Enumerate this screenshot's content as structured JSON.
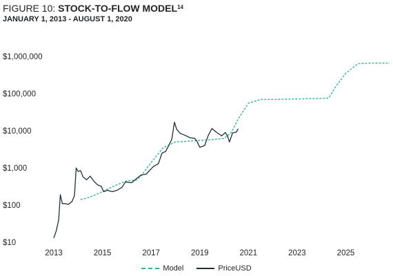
{
  "header": {
    "figure_label": "FIGURE 10:",
    "title": "STOCK-TO-FLOW MODEL",
    "footnote": "14",
    "subtitle": "JANUARY 1, 2013 - AUGUST 1, 2020"
  },
  "chart_data": {
    "type": "line",
    "title": "STOCK-TO-FLOW MODEL",
    "subtitle": "JANUARY 1, 2013 - AUGUST 1, 2020",
    "yscale": "log",
    "ylim": [
      10,
      1000000
    ],
    "xlim": [
      2013,
      2026.8
    ],
    "x_ticks": [
      "2013",
      "2015",
      "2017",
      "2019",
      "2021",
      "2023",
      "2025"
    ],
    "y_ticks": [
      "$10",
      "$100",
      "$1,000",
      "$10,000",
      "$100,000",
      "$1,000,000"
    ],
    "grid": false,
    "legend_position": "bottom",
    "series": [
      {
        "name": "Model",
        "color": "#2fb3a6",
        "style": "dashed",
        "x": [
          2014.1,
          2014.5,
          2015.0,
          2015.5,
          2016.0,
          2016.4,
          2016.6,
          2017.0,
          2017.5,
          2018.0,
          2018.5,
          2019.0,
          2019.5,
          2020.0,
          2020.3,
          2020.6,
          2021.0,
          2021.5,
          2022.0,
          2023.0,
          2024.0,
          2024.3,
          2024.6,
          2025.0,
          2025.5,
          2026.0,
          2026.8
        ],
        "y": [
          140,
          165,
          230,
          330,
          450,
          470,
          620,
          1400,
          3500,
          5000,
          5200,
          5500,
          5800,
          6200,
          9000,
          22000,
          55000,
          70000,
          70000,
          72000,
          74000,
          76000,
          160000,
          350000,
          640000,
          660000,
          660000
        ]
      },
      {
        "name": "PriceUSD",
        "color": "#1d2e38",
        "style": "solid",
        "x": [
          2013.0,
          2013.1,
          2013.2,
          2013.27,
          2013.35,
          2013.45,
          2013.6,
          2013.75,
          2013.85,
          2013.92,
          2014.0,
          2014.1,
          2014.2,
          2014.35,
          2014.5,
          2014.65,
          2014.8,
          2014.95,
          2015.05,
          2015.2,
          2015.4,
          2015.6,
          2015.8,
          2015.95,
          2016.2,
          2016.45,
          2016.6,
          2016.8,
          2017.0,
          2017.1,
          2017.3,
          2017.45,
          2017.6,
          2017.75,
          2017.85,
          2017.96,
          2018.05,
          2018.2,
          2018.4,
          2018.6,
          2018.8,
          2018.9,
          2019.0,
          2019.2,
          2019.35,
          2019.5,
          2019.7,
          2019.9,
          2020.05,
          2020.15,
          2020.22,
          2020.35,
          2020.5,
          2020.58
        ],
        "y": [
          13,
          20,
          40,
          190,
          110,
          110,
          105,
          125,
          180,
          1000,
          800,
          850,
          580,
          480,
          600,
          440,
          350,
          320,
          230,
          250,
          230,
          250,
          300,
          420,
          400,
          550,
          650,
          680,
          950,
          1100,
          1300,
          2500,
          2800,
          4300,
          6000,
          17000,
          11000,
          8500,
          7500,
          6500,
          6200,
          5000,
          3600,
          4000,
          7500,
          11500,
          9000,
          7300,
          9000,
          7000,
          5000,
          8800,
          9200,
          11300
        ]
      }
    ]
  },
  "legend": {
    "model_label": "Model",
    "price_label": "PriceUSD"
  }
}
